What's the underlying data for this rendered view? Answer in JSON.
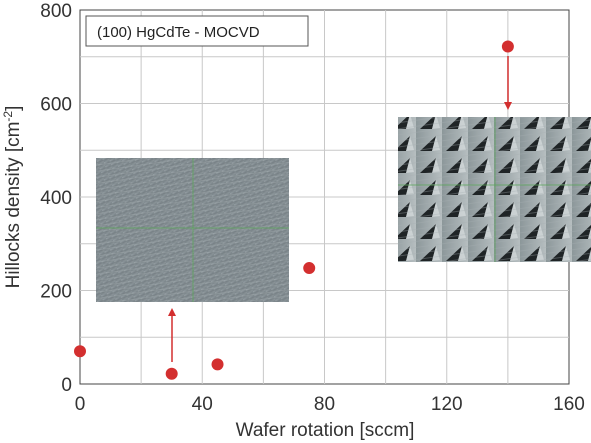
{
  "chart_data": {
    "type": "scatter",
    "title": "",
    "legend_label": "(100) HgCdTe - MOCVD",
    "legend_position": "top-left",
    "xlabel": "Wafer rotation [sccm]",
    "ylabel_main": "Hillocks density  [cm",
    "ylabel_sup": "-2",
    "ylabel_end": "]",
    "xlim": [
      0,
      160
    ],
    "ylim": [
      0,
      800
    ],
    "xticks": [
      0,
      40,
      80,
      120,
      160
    ],
    "yticks": [
      0,
      200,
      400,
      600,
      800
    ],
    "grid": true,
    "marker_color": "#d32f2f",
    "points": [
      {
        "x": 0,
        "y": 70
      },
      {
        "x": 30,
        "y": 22
      },
      {
        "x": 45,
        "y": 42
      },
      {
        "x": 75,
        "y": 248
      },
      {
        "x": 140,
        "y": 722
      }
    ],
    "insets": [
      {
        "name": "low-hillock-micrograph",
        "description": "smooth surface",
        "points_to": {
          "x": 30,
          "y": 22
        }
      },
      {
        "name": "high-hillock-micrograph",
        "description": "pyramidal hillocks",
        "points_to": {
          "x": 140,
          "y": 722
        }
      }
    ]
  }
}
